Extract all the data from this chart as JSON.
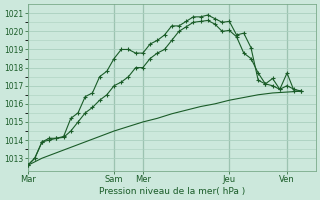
{
  "bg_color": "#cce8dc",
  "grid_color": "#aacfbf",
  "line_color": "#1a5c28",
  "title": "Pression niveau de la mer( hPa )",
  "ylim": [
    1012.3,
    1021.5
  ],
  "yticks": [
    1013,
    1014,
    1015,
    1016,
    1017,
    1018,
    1019,
    1020,
    1021
  ],
  "day_labels": [
    "Mar",
    "Sam",
    "Mer",
    "Jeu",
    "Ven"
  ],
  "day_positions": [
    0,
    72,
    96,
    168,
    216
  ],
  "xmin": 0,
  "xmax": 240,
  "series": [
    {
      "style": "markers",
      "points": [
        [
          0,
          1012.6
        ],
        [
          6,
          1013.0
        ],
        [
          12,
          1013.9
        ],
        [
          18,
          1014.1
        ],
        [
          24,
          1014.1
        ],
        [
          30,
          1014.2
        ],
        [
          36,
          1015.2
        ],
        [
          42,
          1015.5
        ],
        [
          48,
          1016.4
        ],
        [
          54,
          1016.6
        ],
        [
          60,
          1017.5
        ],
        [
          66,
          1017.8
        ],
        [
          72,
          1018.5
        ],
        [
          78,
          1019.0
        ],
        [
          84,
          1019.0
        ],
        [
          90,
          1018.8
        ],
        [
          96,
          1018.8
        ],
        [
          102,
          1019.3
        ],
        [
          108,
          1019.5
        ],
        [
          114,
          1019.8
        ],
        [
          120,
          1020.3
        ],
        [
          126,
          1020.3
        ],
        [
          132,
          1020.55
        ],
        [
          138,
          1020.8
        ],
        [
          144,
          1020.8
        ],
        [
          150,
          1020.9
        ],
        [
          156,
          1020.7
        ],
        [
          162,
          1020.5
        ],
        [
          168,
          1020.55
        ],
        [
          174,
          1019.8
        ],
        [
          180,
          1019.9
        ],
        [
          186,
          1019.1
        ],
        [
          192,
          1017.3
        ],
        [
          198,
          1017.1
        ],
        [
          204,
          1017.4
        ],
        [
          210,
          1016.8
        ],
        [
          216,
          1017.7
        ],
        [
          222,
          1016.7
        ],
        [
          228,
          1016.7
        ]
      ]
    },
    {
      "style": "markers",
      "points": [
        [
          0,
          1012.6
        ],
        [
          6,
          1013.0
        ],
        [
          12,
          1013.9
        ],
        [
          18,
          1014.0
        ],
        [
          24,
          1014.1
        ],
        [
          30,
          1014.15
        ],
        [
          36,
          1014.5
        ],
        [
          42,
          1015.0
        ],
        [
          48,
          1015.5
        ],
        [
          54,
          1015.8
        ],
        [
          60,
          1016.2
        ],
        [
          66,
          1016.5
        ],
        [
          72,
          1017.0
        ],
        [
          78,
          1017.2
        ],
        [
          84,
          1017.5
        ],
        [
          90,
          1018.0
        ],
        [
          96,
          1018.0
        ],
        [
          102,
          1018.5
        ],
        [
          108,
          1018.8
        ],
        [
          114,
          1019.0
        ],
        [
          120,
          1019.5
        ],
        [
          126,
          1020.0
        ],
        [
          132,
          1020.25
        ],
        [
          138,
          1020.5
        ],
        [
          144,
          1020.55
        ],
        [
          150,
          1020.6
        ],
        [
          156,
          1020.4
        ],
        [
          162,
          1020.0
        ],
        [
          168,
          1020.05
        ],
        [
          174,
          1019.7
        ],
        [
          180,
          1018.8
        ],
        [
          186,
          1018.5
        ],
        [
          192,
          1017.7
        ],
        [
          198,
          1017.1
        ],
        [
          204,
          1017.0
        ],
        [
          210,
          1016.8
        ],
        [
          216,
          1017.0
        ],
        [
          222,
          1016.8
        ],
        [
          228,
          1016.7
        ]
      ]
    },
    {
      "style": "line",
      "points": [
        [
          0,
          1012.6
        ],
        [
          12,
          1013.0
        ],
        [
          24,
          1013.3
        ],
        [
          36,
          1013.6
        ],
        [
          48,
          1013.9
        ],
        [
          60,
          1014.2
        ],
        [
          72,
          1014.5
        ],
        [
          84,
          1014.75
        ],
        [
          96,
          1015.0
        ],
        [
          108,
          1015.2
        ],
        [
          120,
          1015.45
        ],
        [
          132,
          1015.65
        ],
        [
          144,
          1015.85
        ],
        [
          156,
          1016.0
        ],
        [
          168,
          1016.2
        ],
        [
          180,
          1016.35
        ],
        [
          192,
          1016.5
        ],
        [
          204,
          1016.6
        ],
        [
          216,
          1016.65
        ],
        [
          228,
          1016.7
        ]
      ]
    }
  ]
}
